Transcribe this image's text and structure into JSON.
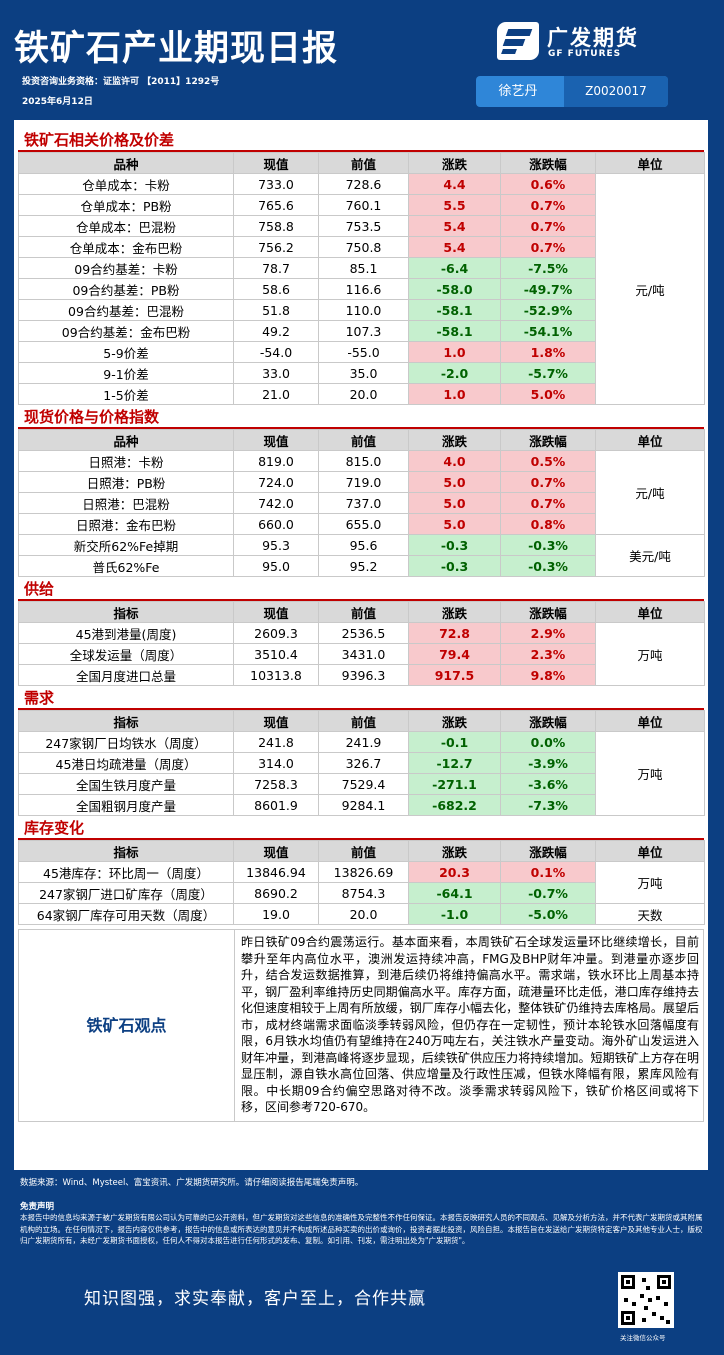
{
  "header": {
    "title": "铁矿石产业期现日报",
    "license": "投资咨询业务资格：证监许可 【2011】1292号",
    "date": "2025年6月12日",
    "logo_cn": "广发期货",
    "logo_en": "GF FUTURES",
    "analyst_name": "徐艺丹",
    "analyst_id": "Z0020017"
  },
  "sections": {
    "price": {
      "title": "铁矿石相关价格及价差",
      "cols": [
        "品种",
        "现值",
        "前值",
        "涨跌",
        "涨跌幅",
        "单位"
      ],
      "unit": "元/吨",
      "rows": [
        [
          "仓单成本：卡粉",
          "733.0",
          "728.6",
          "4.4",
          "0.6%"
        ],
        [
          "仓单成本：PB粉",
          "765.6",
          "760.1",
          "5.5",
          "0.7%"
        ],
        [
          "仓单成本：巴混粉",
          "758.8",
          "753.5",
          "5.4",
          "0.7%"
        ],
        [
          "仓单成本：金布巴粉",
          "756.2",
          "750.8",
          "5.4",
          "0.7%"
        ],
        [
          "09合约基差：卡粉",
          "78.7",
          "85.1",
          "-6.4",
          "-7.5%"
        ],
        [
          "09合约基差：PB粉",
          "58.6",
          "116.6",
          "-58.0",
          "-49.7%"
        ],
        [
          "09合约基差：巴混粉",
          "51.8",
          "110.0",
          "-58.1",
          "-52.9%"
        ],
        [
          "09合约基差：金布巴粉",
          "49.2",
          "107.3",
          "-58.1",
          "-54.1%"
        ],
        [
          "5-9价差",
          "-54.0",
          "-55.0",
          "1.0",
          "1.8%"
        ],
        [
          "9-1价差",
          "33.0",
          "35.0",
          "-2.0",
          "-5.7%"
        ],
        [
          "1-5价差",
          "21.0",
          "20.0",
          "1.0",
          "5.0%"
        ]
      ]
    },
    "spot": {
      "title": "现货价格与价格指数",
      "cols": [
        "品种",
        "现值",
        "前值",
        "涨跌",
        "涨跌幅",
        "单位"
      ],
      "unit1": "元/吨",
      "unit2": "美元/吨",
      "rows": [
        [
          "日照港：卡粉",
          "819.0",
          "815.0",
          "4.0",
          "0.5%"
        ],
        [
          "日照港：PB粉",
          "724.0",
          "719.0",
          "5.0",
          "0.7%"
        ],
        [
          "日照港：巴混粉",
          "742.0",
          "737.0",
          "5.0",
          "0.7%"
        ],
        [
          "日照港：金布巴粉",
          "660.0",
          "655.0",
          "5.0",
          "0.8%"
        ],
        [
          "新交所62%Fe掉期",
          "95.3",
          "95.6",
          "-0.3",
          "-0.3%"
        ],
        [
          "普氏62%Fe",
          "95.0",
          "95.2",
          "-0.3",
          "-0.3%"
        ]
      ]
    },
    "supply": {
      "title": "供给",
      "cols": [
        "指标",
        "现值",
        "前值",
        "涨跌",
        "涨跌幅",
        "单位"
      ],
      "unit": "万吨",
      "rows": [
        [
          "45港到港量(周度)",
          "2609.3",
          "2536.5",
          "72.8",
          "2.9%"
        ],
        [
          "全球发运量（周度）",
          "3510.4",
          "3431.0",
          "79.4",
          "2.3%"
        ],
        [
          "全国月度进口总量",
          "10313.8",
          "9396.3",
          "917.5",
          "9.8%"
        ]
      ]
    },
    "demand": {
      "title": "需求",
      "cols": [
        "指标",
        "现值",
        "前值",
        "涨跌",
        "涨跌幅",
        "单位"
      ],
      "unit": "万吨",
      "rows": [
        [
          "247家钢厂日均铁水（周度）",
          "241.8",
          "241.9",
          "-0.1",
          "0.0%"
        ],
        [
          "45港日均疏港量（周度）",
          "314.0",
          "326.7",
          "-12.7",
          "-3.9%"
        ],
        [
          "全国生铁月度产量",
          "7258.3",
          "7529.4",
          "-271.1",
          "-3.6%"
        ],
        [
          "全国粗钢月度产量",
          "8601.9",
          "9284.1",
          "-682.2",
          "-7.3%"
        ]
      ]
    },
    "inventory": {
      "title": "库存变化",
      "cols": [
        "指标",
        "现值",
        "前值",
        "涨跌",
        "涨跌幅",
        "单位"
      ],
      "unit1": "万吨",
      "unit2": "天数",
      "rows": [
        [
          "45港库存：环比周一（周度）",
          "13846.94",
          "13826.69",
          "20.3",
          "0.1%"
        ],
        [
          "247家钢厂进口矿库存（周度）",
          "8690.2",
          "8754.3",
          "-64.1",
          "-0.7%"
        ],
        [
          "64家钢厂库存可用天数（周度）",
          "19.0",
          "20.0",
          "-1.0",
          "-5.0%"
        ]
      ]
    }
  },
  "view": {
    "label": "铁矿石观点",
    "text": "昨日铁矿09合约震荡运行。基本面来看，本周铁矿石全球发运量环比继续增长，目前攀升至年内高位水平，澳洲发运持续冲高，FMG及BHP财年冲量。到港量亦逐步回升，结合发运数据推算，到港后续仍将维持偏高水平。需求端，铁水环比上周基本持平，钢厂盈利率维持历史同期偏高水平。库存方面，疏港量环比走低，港口库存维持去化但速度相较于上周有所放缓，钢厂库存小幅去化，整体铁矿仍维持去库格局。展望后市，成材终端需求面临淡季转弱风险，但仍存在一定韧性，预计本轮铁水回落幅度有限，6月铁水均值仍有望维持在240万吨左右，关注铁水产量变动。海外矿山发运进入财年冲量，到港高峰将逐步显现，后续铁矿供应压力将持续增加。短期铁矿上方存在明显压制，源自铁水高位回落、供应增量及行政性压减，但铁水降幅有限，累库风险有限。中长期09合约偏空思路对待不改。淡季需求转弱风险下，铁矿价格区间或将下移，区间参考720-670。"
  },
  "footer": {
    "source": "数据来源：Wind、Mysteel、富宝资讯、广发期货研究所。请仔细阅读报告尾端免责声明。",
    "disclaimer_title": "免责声明",
    "disclaimer": "本报告中的信息均来源于被广发期货有限公司认为可靠的已公开资料，但广发期货对这些信息的准确性及完整性不作任何保证。本报告反映研究人员的不同观点、见解及分析方法，并不代表广发期货或其附属机构的立场。在任何情况下，报告内容仅供参考，报告中的信息或所表达的意见并不构成所述品种买卖的出价或询价，投资者据此投资，风险自担。本报告旨在发送给广发期货特定客户及其他专业人士，版权归广发期货所有，未经广发期货书面授权，任何人不得对本报告进行任何形式的发布、复制。如引用、刊发，需注明出处为\"广发期货\"。",
    "slogan": "知识图强，求实奉献，客户至上，合作共赢",
    "qr_caption": "关注微信公众号"
  }
}
